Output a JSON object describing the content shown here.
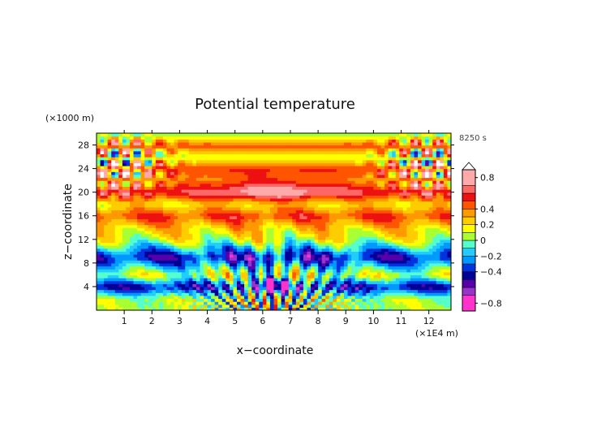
{
  "chart_data": {
    "type": "heatmap",
    "title": "Potential temperature",
    "xlabel": "x−coordinate",
    "ylabel": "z−coordinate",
    "x_unit": "(×1E4 m)",
    "y_unit": "(×1000 m)",
    "time_label": "8250 s",
    "xlim": [
      0,
      12.8
    ],
    "ylim": [
      0,
      30
    ],
    "x_ticks": [
      1,
      2,
      3,
      4,
      5,
      6,
      7,
      8,
      9,
      10,
      11,
      12
    ],
    "y_ticks": [
      4,
      8,
      12,
      16,
      20,
      24,
      28
    ],
    "colorbar": {
      "range": [
        -0.9,
        0.9
      ],
      "tick_values": [
        0.8,
        0.4,
        0.2,
        0,
        -0.2,
        -0.4,
        -0.8
      ],
      "tick_labels": [
        "0.8",
        "0.4",
        "0.2",
        "0",
        "−0.2",
        "−0.4",
        "−0.8"
      ],
      "levels": [
        -0.9,
        -0.7,
        -0.6,
        -0.5,
        -0.4,
        -0.3,
        -0.2,
        -0.1,
        0,
        0.1,
        0.2,
        0.3,
        0.4,
        0.5,
        0.6,
        0.7,
        0.9
      ],
      "colors": [
        "#ff33cc",
        "#9933cc",
        "#5500aa",
        "#000099",
        "#0033dd",
        "#0099ff",
        "#22ccff",
        "#55ffcc",
        "#aaff33",
        "#ffff00",
        "#ffcc00",
        "#ff9900",
        "#ff5500",
        "#ee1111",
        "#ff6666",
        "#ffaaaa"
      ],
      "over_color": "#ffffff"
    },
    "field": {
      "description_free": true,
      "mean_layers": [
        {
          "z": 2,
          "value": 0.05
        },
        {
          "z": 4,
          "value": -0.45
        },
        {
          "z": 6,
          "value": 0.1
        },
        {
          "z": 9,
          "value": -0.45
        },
        {
          "z": 12,
          "value": 0.1
        },
        {
          "z": 14,
          "value": 0.25
        },
        {
          "z": 16,
          "value": 0.5
        },
        {
          "z": 18,
          "value": 0.2
        },
        {
          "z": 20,
          "value": 0.6
        },
        {
          "z": 22,
          "value": 0.35
        },
        {
          "z": 24,
          "value": 0.5
        },
        {
          "z": 26,
          "value": 0.1
        },
        {
          "z": 28,
          "value": 0.45
        },
        {
          "z": 30,
          "value": 0.0
        }
      ]
    }
  }
}
